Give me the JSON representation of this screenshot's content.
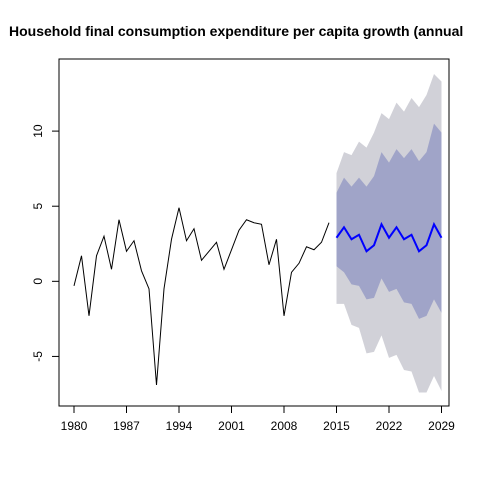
{
  "chart_data": {
    "type": "line",
    "title": "Household final consumption expenditure per capita growth (annual",
    "xlabel": "",
    "ylabel": "",
    "xlim": [
      1978,
      2030
    ],
    "ylim": [
      -8.3,
      14.8
    ],
    "x_ticks": [
      1980,
      1987,
      1994,
      2001,
      2008,
      2015,
      2022,
      2029
    ],
    "y_ticks": [
      -5,
      0,
      5,
      10
    ],
    "grid": false,
    "legend": "none",
    "colors": {
      "history": "#000000",
      "forecast": "#0000ff",
      "band_80": "#a0a4c8",
      "band_95": "#d1d1d8"
    },
    "series": [
      {
        "role": "history",
        "x": [
          1980,
          1981,
          1982,
          1983,
          1984,
          1985,
          1986,
          1987,
          1988,
          1989,
          1990,
          1991,
          1992,
          1993,
          1994,
          1995,
          1996,
          1997,
          1998,
          1999,
          2000,
          2001,
          2002,
          2003,
          2004,
          2005,
          2006,
          2007,
          2008,
          2009,
          2010,
          2011,
          2012,
          2013,
          2014
        ],
        "values": [
          -0.3,
          1.7,
          -2.3,
          1.7,
          3.0,
          0.8,
          4.1,
          2.0,
          2.7,
          0.7,
          -0.5,
          -6.9,
          -0.5,
          2.8,
          4.9,
          2.7,
          3.5,
          1.4,
          2.0,
          2.6,
          0.8,
          2.1,
          3.4,
          4.1,
          3.9,
          3.8,
          1.1,
          2.8,
          -2.3,
          0.6,
          1.2,
          2.3,
          2.1,
          2.6,
          3.9
        ]
      },
      {
        "role": "forecast",
        "x": [
          2015,
          2016,
          2017,
          2018,
          2019,
          2020,
          2021,
          2022,
          2023,
          2024,
          2025,
          2026,
          2027,
          2028,
          2029
        ],
        "values": [
          2.9,
          3.6,
          2.8,
          3.1,
          2.0,
          2.4,
          3.8,
          2.9,
          3.6,
          2.8,
          3.1,
          2.0,
          2.4,
          3.8,
          2.9
        ],
        "lo80": [
          1.0,
          0.6,
          -0.2,
          -0.3,
          -1.2,
          -1.1,
          0.2,
          -0.7,
          -0.5,
          -1.4,
          -1.5,
          -2.5,
          -2.3,
          -1.2,
          -2.1
        ],
        "hi80": [
          5.9,
          6.9,
          6.3,
          6.9,
          6.3,
          7.0,
          8.6,
          7.9,
          8.8,
          8.2,
          8.8,
          8.0,
          8.6,
          10.5,
          9.9
        ],
        "lo95": [
          -1.5,
          -1.5,
          -2.9,
          -3.1,
          -4.8,
          -4.7,
          -3.6,
          -5.1,
          -4.9,
          -5.9,
          -6.0,
          -7.4,
          -7.4,
          -6.3,
          -7.3
        ],
        "hi95": [
          7.2,
          8.6,
          8.4,
          9.3,
          8.9,
          9.9,
          11.2,
          10.8,
          11.9,
          11.3,
          12.2,
          11.6,
          12.4,
          13.8,
          13.3
        ]
      }
    ]
  }
}
